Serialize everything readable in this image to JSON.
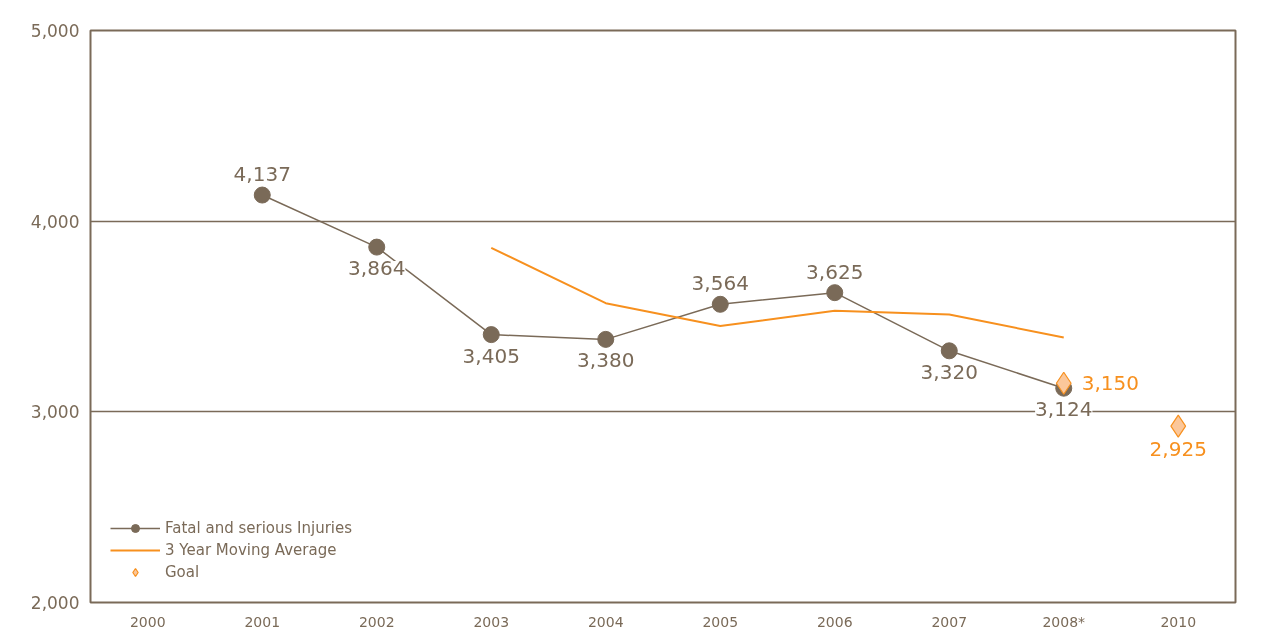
{
  "chart_data": {
    "type": "line",
    "categories": [
      "2000",
      "2001",
      "2002",
      "2003",
      "2004",
      "2005",
      "2006",
      "2007",
      "2008*",
      "2010"
    ],
    "series": [
      {
        "name": "Fatal and serious Injuries",
        "marker": "circle",
        "color": "#7a6a58",
        "values": [
          null,
          4137,
          3864,
          3405,
          3380,
          3564,
          3625,
          3320,
          3124,
          null
        ],
        "value_labels": [
          null,
          "4,137",
          "3,864",
          "3,405",
          "3,380",
          "3,564",
          "3,625",
          "3,320",
          "3,124",
          null
        ]
      },
      {
        "name": "3 Year Moving Average",
        "marker": "none",
        "color": "#f7901e",
        "values": [
          null,
          null,
          null,
          3860,
          3570,
          3450,
          3530,
          3510,
          3390,
          null
        ]
      },
      {
        "name": "Goal",
        "type": "scatter",
        "marker": "diamond",
        "color": "#fbc79a",
        "values": [
          null,
          null,
          null,
          null,
          null,
          null,
          null,
          null,
          3150,
          2925
        ],
        "value_labels": [
          null,
          null,
          null,
          null,
          null,
          null,
          null,
          null,
          "3,150",
          "2,925"
        ]
      }
    ],
    "ylim": [
      2000,
      5000
    ],
    "yticks": [
      {
        "value": 2000,
        "label": "2,000"
      },
      {
        "value": 3000,
        "label": "3,000"
      },
      {
        "value": 4000,
        "label": "4,000"
      },
      {
        "value": 5000,
        "label": "5,000"
      }
    ],
    "grid": "y",
    "legend": "bottom left"
  }
}
